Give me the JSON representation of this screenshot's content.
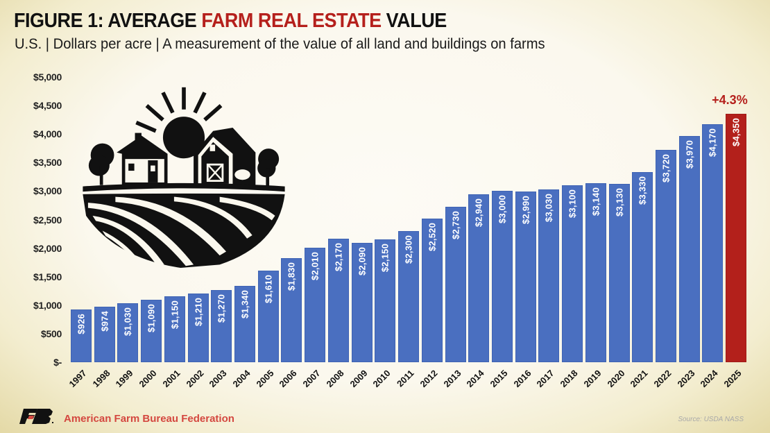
{
  "header": {
    "title_prefix": "FIGURE 1: AVERAGE ",
    "title_accent": "FARM REAL ESTATE",
    "title_suffix": " VALUE",
    "subtitle": "U.S. | Dollars per acre | A measurement of the value of all land and buildings on farms"
  },
  "annotation": {
    "growth_label": "+4.3%"
  },
  "footer": {
    "organization": "American Farm Bureau Federation",
    "source": "Source: USDA NASS"
  },
  "colors": {
    "bar": "#4a6fc0",
    "highlight_bar": "#b3201b",
    "accent_text": "#b5201c"
  },
  "icons": [
    "farm-landscape-icon",
    "afbf-logo-icon"
  ],
  "chart_data": {
    "type": "bar",
    "title": "FIGURE 1: AVERAGE FARM REAL ESTATE VALUE",
    "subtitle": "U.S. | Dollars per acre | A measurement of the value of all land and buildings on farms",
    "xlabel": "",
    "ylabel": "Dollars per acre",
    "ylim": [
      0,
      5000
    ],
    "yticks": [
      "$-",
      "$500",
      "$1,000",
      "$1,500",
      "$2,000",
      "$2,500",
      "$3,000",
      "$3,500",
      "$4,000",
      "$4,500",
      "$5,000"
    ],
    "grid": false,
    "legend": "none",
    "categories": [
      "1997",
      "1998",
      "1999",
      "2000",
      "2001",
      "2002",
      "2003",
      "2004",
      "2005",
      "2006",
      "2007",
      "2008",
      "2009",
      "2010",
      "2011",
      "2012",
      "2013",
      "2014",
      "2015",
      "2016",
      "2017",
      "2018",
      "2019",
      "2020",
      "2021",
      "2022",
      "2023",
      "2024",
      "2025"
    ],
    "values": [
      926,
      974,
      1030,
      1090,
      1150,
      1210,
      1270,
      1340,
      1610,
      1830,
      2010,
      2170,
      2090,
      2150,
      2300,
      2520,
      2730,
      2940,
      3000,
      2990,
      3030,
      3100,
      3140,
      3130,
      3330,
      3720,
      3970,
      4170,
      4350
    ],
    "value_labels": [
      "$926",
      "$974",
      "$1,030",
      "$1,090",
      "$1,150",
      "$1,210",
      "$1,270",
      "$1,340",
      "$1,610",
      "$1,830",
      "$2,010",
      "$2,170",
      "$2,090",
      "$2,150",
      "$2,300",
      "$2,520",
      "$2,730",
      "$2,940",
      "$3,000",
      "$2,990",
      "$3,030",
      "$3,100",
      "$3,140",
      "$3,130",
      "$3,330",
      "$3,720",
      "$3,970",
      "$4,170",
      "$4,350"
    ],
    "highlight_index": 28,
    "annotations": [
      {
        "category": "2025",
        "text": "+4.3%"
      }
    ]
  }
}
